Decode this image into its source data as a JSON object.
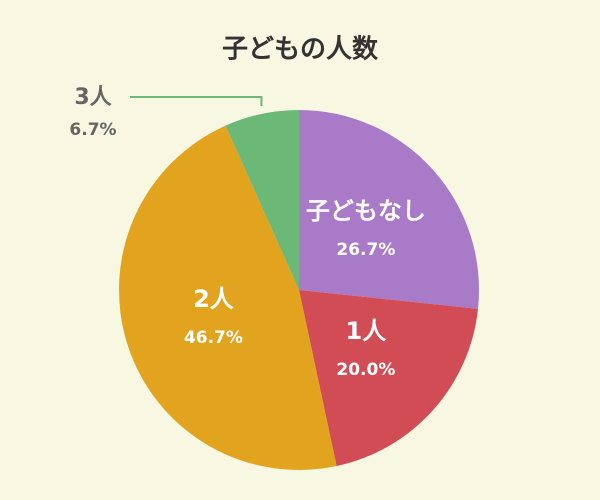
{
  "chart_data": {
    "type": "pie",
    "title": "子どもの人数",
    "categories": [
      "子どもなし",
      "1人",
      "2人",
      "3人"
    ],
    "values": [
      26.7,
      20.0,
      46.7,
      6.7
    ],
    "value_labels": [
      "26.7%",
      "20.0%",
      "46.7%",
      "6.7%"
    ],
    "colors": [
      "#a97ac8",
      "#d24c55",
      "#e2a41e",
      "#6bb877"
    ]
  }
}
